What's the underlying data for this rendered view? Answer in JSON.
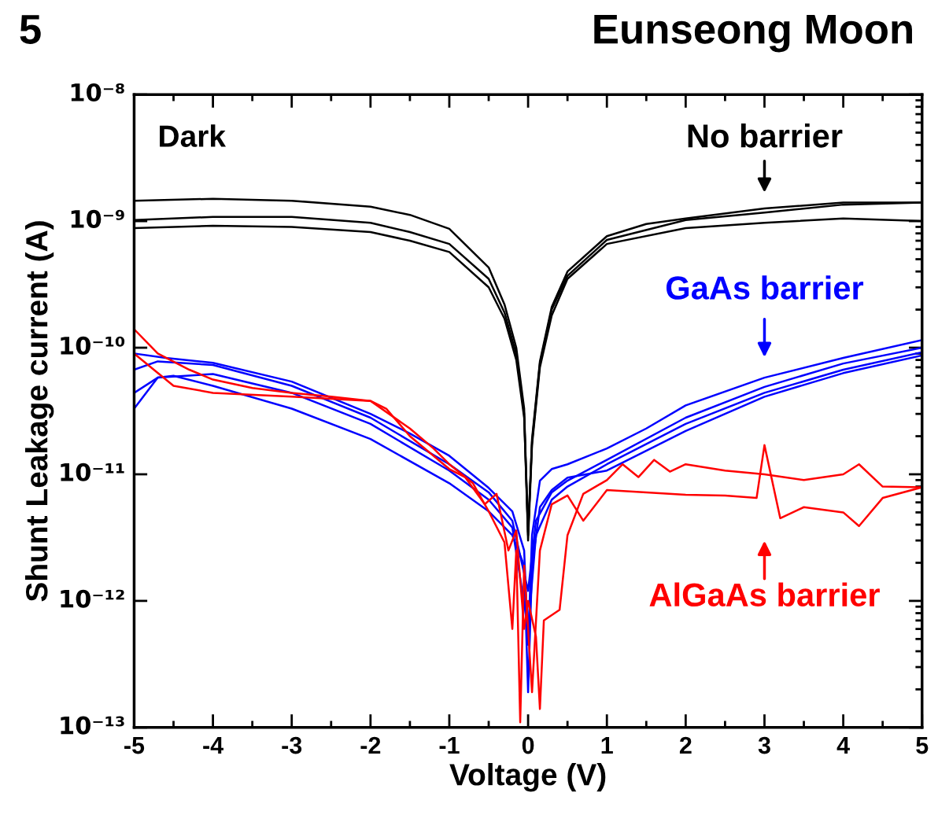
{
  "chart_data": {
    "type": "line",
    "title": "Eunseong Moon",
    "xlabel": "Voltage (V)",
    "ylabel": "Shunt Leakage current (A)",
    "log": "y",
    "xlim": [
      -5,
      5
    ],
    "xticks": [
      -5,
      -4,
      -3,
      -2,
      -1,
      0,
      1,
      2,
      3,
      4,
      5
    ],
    "ylim": [
      1e-13,
      1e-08
    ],
    "yticks": [
      {
        "value": 1e-13,
        "label": "10⁻¹³"
      },
      {
        "value": 1e-12,
        "label": "10⁻¹²"
      },
      {
        "value": 1e-11,
        "label": "10⁻¹¹"
      },
      {
        "value": 1e-10,
        "label": "10⁻¹⁰"
      },
      {
        "value": 1e-09,
        "label": "10⁻⁹"
      },
      {
        "value": 1e-08,
        "label": "10⁻⁸"
      }
    ],
    "grid": false,
    "line_style": "solid",
    "annotations": [
      "5",
      "Dark",
      "No barrier",
      "GaAs barrier",
      "AlGaAs barrier"
    ],
    "series": [
      {
        "color": "#000000",
        "x": [
          -5,
          -4,
          -3,
          -2,
          -1.5,
          -1,
          -0.5,
          -0.3,
          -0.15,
          -0.05,
          0,
          0.05,
          0.15,
          0.3,
          0.5,
          1,
          1.5,
          2,
          3,
          4,
          5
        ],
        "values": [
          1.45e-09,
          1.5e-09,
          1.45e-09,
          1.3e-09,
          1.12e-09,
          8.7e-10,
          4.3e-10,
          2.2e-10,
          1e-10,
          3.3e-11,
          3.3e-12,
          1.9e-11,
          7.8e-11,
          2.1e-10,
          4e-10,
          7.6e-10,
          9.5e-10,
          1.05e-09,
          1.26e-09,
          1.4e-09,
          1.4e-09
        ]
      },
      {
        "color": "#000000",
        "x": [
          -5,
          -4,
          -3,
          -2,
          -1.5,
          -1,
          -0.5,
          -0.3,
          -0.15,
          -0.05,
          0,
          0.05,
          0.15,
          0.3,
          0.5,
          1,
          2,
          3,
          4,
          5
        ],
        "values": [
          1.02e-09,
          1.08e-09,
          1.08e-09,
          9.7e-10,
          8.2e-10,
          6.6e-10,
          3.5e-10,
          1.9e-10,
          8.9e-11,
          3e-11,
          3e-12,
          1.7e-11,
          7e-11,
          1.8e-10,
          3.5e-10,
          6.6e-10,
          8.8e-10,
          9.7e-10,
          1.05e-09,
          1e-09
        ]
      },
      {
        "color": "#000000",
        "x": [
          -5,
          -4,
          -3,
          -2,
          -1.5,
          -1,
          -0.5,
          -0.3,
          -0.15,
          -0.05,
          0,
          0.05,
          0.15,
          0.3,
          0.5,
          1,
          2,
          3,
          4,
          5
        ],
        "values": [
          8.8e-10,
          9.2e-10,
          9e-10,
          8.2e-10,
          7e-10,
          5.7e-10,
          3e-10,
          1.7e-10,
          8e-11,
          2.8e-11,
          3.5e-12,
          1.8e-11,
          7.5e-11,
          2e-10,
          3.7e-10,
          7.1e-10,
          1.02e-09,
          1.17e-09,
          1.35e-09,
          1.4e-09
        ]
      },
      {
        "color": "#0000ff",
        "x": [
          -5,
          -4.6,
          -4,
          -3,
          -2,
          -1.5,
          -1,
          -0.5,
          -0.2,
          -0.05,
          0,
          0.05,
          0.15,
          0.3,
          0.5,
          1,
          1.5,
          2,
          3,
          4,
          5
        ],
        "values": [
          9e-11,
          8.3e-11,
          7.6e-11,
          5.4e-11,
          3e-11,
          2.1e-11,
          1.4e-11,
          7.8e-12,
          5.1e-12,
          2.5e-12,
          4.5e-13,
          3.3e-12,
          8.9e-12,
          1.1e-11,
          1.2e-11,
          1.6e-11,
          2.3e-11,
          3.5e-11,
          5.8e-11,
          8.3e-11,
          1.15e-10
        ]
      },
      {
        "color": "#0000ff",
        "x": [
          -5,
          -4.7,
          -4,
          -3,
          -2,
          -1,
          -0.5,
          -0.2,
          0,
          0.1,
          0.3,
          0.5,
          1,
          2,
          3,
          4,
          5
        ],
        "values": [
          6.7e-11,
          7.8e-11,
          7.3e-11,
          5e-11,
          2.8e-11,
          1.2e-11,
          7.2e-12,
          4.3e-12,
          1.2e-12,
          4.3e-12,
          7.2e-12,
          8.9e-12,
          1.3e-11,
          2.8e-11,
          4.9e-11,
          7.5e-11,
          1e-10
        ]
      },
      {
        "color": "#0000ff",
        "x": [
          -5,
          -4.7,
          -4,
          -3,
          -2,
          -1,
          -0.5,
          -0.2,
          0,
          0.1,
          0.3,
          0.5,
          1,
          2,
          3,
          4,
          5
        ],
        "values": [
          3.3e-11,
          5.8e-11,
          6.2e-11,
          4.4e-11,
          2.5e-11,
          1.07e-11,
          6.3e-12,
          3.8e-12,
          6e-13,
          3.3e-12,
          6.3e-12,
          8e-12,
          1.2e-11,
          2.5e-11,
          4.4e-11,
          6.7e-11,
          9.2e-11
        ]
      },
      {
        "color": "#0000ff",
        "x": [
          -5,
          -4.7,
          -4.5,
          -4,
          -3,
          -2,
          -1,
          -0.5,
          -0.2,
          -0.05,
          0,
          0.05,
          0.15,
          0.3,
          0.5,
          1,
          2,
          3,
          4,
          5
        ],
        "values": [
          4.4e-11,
          5.8e-11,
          6e-11,
          5e-11,
          3.3e-11,
          1.9e-11,
          8.5e-12,
          5.1e-12,
          3.3e-12,
          1.9e-12,
          1.9e-13,
          1.9e-12,
          5.5e-12,
          7.5e-12,
          9.4e-12,
          1.07e-11,
          2.2e-11,
          4.1e-11,
          6.3e-11,
          8.7e-11
        ]
      },
      {
        "color": "#ff0000",
        "x": [
          -5,
          -4.7,
          -4.3,
          -4,
          -3.5,
          -3,
          -2.5,
          -2,
          -1.8,
          -1.5,
          -1.2,
          -1,
          -0.8,
          -0.55,
          -0.4,
          -0.25,
          -0.15,
          -0.05,
          0,
          0.1,
          0.15,
          0.2,
          0.4,
          0.5,
          0.7,
          1,
          1.2,
          1.4,
          1.6,
          1.8,
          2,
          2.5,
          3,
          3.5,
          4,
          4.2,
          4.5,
          5
        ],
        "values": [
          1.4e-10,
          9e-11,
          6.7e-11,
          5.6e-11,
          4.8e-11,
          4.4e-11,
          4.1e-11,
          3.8e-11,
          3.3e-11,
          2e-11,
          1.4e-11,
          1.1e-11,
          9.5e-12,
          5.8e-12,
          7e-12,
          2.5e-12,
          3.6e-12,
          6e-13,
          1e-12,
          5.2e-13,
          1.4e-13,
          7e-13,
          8.5e-13,
          3.3e-12,
          7e-12,
          9e-12,
          1.2e-11,
          9.5e-12,
          1.3e-11,
          1.05e-11,
          1.2e-11,
          1.07e-11,
          1e-11,
          9e-12,
          1e-11,
          1.2e-11,
          8e-12,
          7.9e-12
        ]
      },
      {
        "color": "#ff0000",
        "x": [
          -5,
          -4.5,
          -4,
          -3,
          -2,
          -1.5,
          -1.2,
          -1,
          -0.7,
          -0.5,
          -0.3,
          -0.2,
          -0.15,
          -0.1,
          -0.05,
          0.05,
          0.15,
          0.3,
          0.5,
          0.7,
          1,
          1.5,
          2,
          2.5,
          2.9,
          3,
          3.2,
          3.5,
          4,
          4.2,
          4.5,
          5
        ],
        "values": [
          9e-11,
          5e-11,
          4.4e-11,
          4.1e-11,
          3.8e-11,
          2.3e-11,
          1.6e-11,
          1.2e-11,
          8.5e-12,
          5.1e-12,
          2.9e-12,
          6e-13,
          2.5e-12,
          1.1e-13,
          1.9e-12,
          1.9e-13,
          2.5e-12,
          5.8e-12,
          6.8e-12,
          4.3e-12,
          7.5e-12,
          7.2e-12,
          6.9e-12,
          6.8e-12,
          6.5e-12,
          1.7e-11,
          4.5e-12,
          5.5e-12,
          5e-12,
          3.9e-12,
          6.5e-12,
          7.9e-12
        ]
      }
    ]
  }
}
